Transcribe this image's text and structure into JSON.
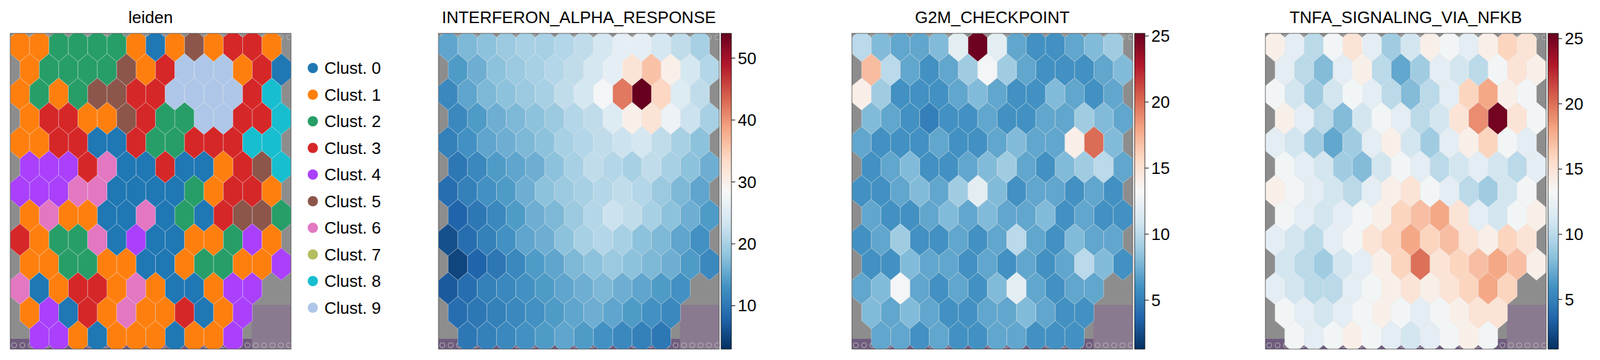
{
  "chart_data": [
    {
      "type": "spatial_categorical",
      "title": "leiden",
      "categories": [
        "Clust. 0",
        "Clust. 1",
        "Clust. 2",
        "Clust. 3",
        "Clust. 4",
        "Clust. 5",
        "Clust. 6",
        "Clust. 7",
        "Clust. 8",
        "Clust. 9"
      ],
      "colors": [
        "#1f77b4",
        "#ff7f0e",
        "#279e68",
        "#d62728",
        "#aa40fc",
        "#8c564b",
        "#e377c2",
        "#b5bd61",
        "#17becf",
        "#aec7e8"
      ],
      "legend": "right",
      "cells": [
        [
          1,
          1,
          2,
          2,
          2,
          2,
          1,
          0,
          1,
          5,
          1,
          3,
          3,
          1
        ],
        [
          1,
          2,
          2,
          2,
          2,
          5,
          1,
          3,
          9,
          9,
          9,
          1,
          3,
          0
        ],
        [
          1,
          2,
          1,
          2,
          5,
          5,
          3,
          3,
          9,
          9,
          9,
          9,
          3,
          8
        ],
        [
          1,
          3,
          3,
          1,
          1,
          5,
          3,
          2,
          2,
          9,
          9,
          3,
          3,
          8
        ],
        [
          1,
          1,
          3,
          3,
          0,
          0,
          3,
          2,
          2,
          3,
          3,
          3,
          8,
          8
        ],
        [
          4,
          4,
          4,
          3,
          6,
          0,
          0,
          3,
          0,
          0,
          1,
          3,
          5,
          8
        ],
        [
          4,
          4,
          4,
          6,
          6,
          0,
          0,
          0,
          0,
          2,
          1,
          3,
          3,
          1
        ],
        [
          1,
          6,
          1,
          1,
          0,
          0,
          6,
          0,
          2,
          0,
          3,
          5,
          5,
          2
        ],
        [
          3,
          1,
          2,
          2,
          6,
          0,
          4,
          0,
          0,
          1,
          1,
          2,
          4,
          1
        ],
        [
          1,
          1,
          2,
          2,
          1,
          1,
          0,
          0,
          1,
          2,
          2,
          1,
          1,
          4
        ],
        [
          6,
          0,
          1,
          3,
          3,
          1,
          6,
          1,
          0,
          0,
          1,
          4,
          4,
          null
        ],
        [
          1,
          4,
          0,
          3,
          1,
          6,
          1,
          1,
          3,
          0,
          1,
          4,
          null,
          null
        ],
        [
          null,
          4,
          4,
          1,
          0,
          1,
          1,
          1,
          0,
          1,
          1,
          4,
          null,
          null
        ]
      ]
    },
    {
      "type": "spatial_heatmap",
      "title": "INTERFERON_ALPHA_RESPONSE",
      "colorbar": {
        "range": [
          3,
          54
        ],
        "ticks": [
          10,
          20,
          30,
          40,
          50
        ]
      },
      "cells": [
        [
          15,
          17,
          18,
          19,
          20,
          20,
          21,
          22,
          24,
          26,
          26,
          24,
          22,
          20
        ],
        [
          14,
          16,
          18,
          19,
          20,
          21,
          22,
          24,
          26,
          32,
          36,
          30,
          24,
          21
        ],
        [
          12,
          15,
          17,
          18,
          19,
          20,
          22,
          24,
          28,
          42,
          54,
          34,
          25,
          22
        ],
        [
          12,
          14,
          16,
          17,
          18,
          19,
          21,
          22,
          25,
          30,
          32,
          27,
          23,
          20
        ],
        [
          11,
          13,
          15,
          16,
          17,
          18,
          20,
          21,
          22,
          23,
          24,
          22,
          20,
          18
        ],
        [
          10,
          12,
          14,
          15,
          16,
          18,
          20,
          22,
          21,
          20,
          22,
          20,
          18,
          16
        ],
        [
          9,
          11,
          13,
          14,
          16,
          18,
          19,
          20,
          21,
          22,
          21,
          19,
          17,
          15
        ],
        [
          8,
          10,
          12,
          14,
          16,
          17,
          19,
          21,
          23,
          22,
          20,
          18,
          16,
          14
        ],
        [
          6,
          9,
          11,
          13,
          15,
          16,
          18,
          20,
          21,
          20,
          18,
          17,
          15,
          13
        ],
        [
          5,
          8,
          10,
          12,
          14,
          15,
          17,
          18,
          19,
          18,
          17,
          16,
          14,
          12
        ],
        [
          7,
          9,
          11,
          12,
          13,
          14,
          15,
          16,
          17,
          16,
          15,
          14,
          13,
          null
        ],
        [
          9,
          10,
          11,
          12,
          13,
          14,
          15,
          16,
          15,
          14,
          13,
          12,
          null,
          null
        ],
        [
          null,
          10,
          11,
          12,
          13,
          14,
          15,
          14,
          13,
          12,
          11,
          10,
          null,
          null
        ]
      ]
    },
    {
      "type": "spatial_heatmap",
      "title": "G2M_CHECKPOINT",
      "colorbar": {
        "range": [
          1.3,
          25.2
        ],
        "ticks": [
          5,
          10,
          15,
          20,
          25
        ]
      },
      "cells": [
        [
          10,
          8,
          7,
          7,
          8,
          12,
          25,
          12,
          7,
          6,
          6,
          7,
          8,
          9
        ],
        [
          17,
          10,
          7,
          6,
          7,
          9,
          13,
          9,
          7,
          6,
          6,
          6,
          7,
          8
        ],
        [
          14,
          9,
          6,
          6,
          6,
          7,
          8,
          7,
          6,
          6,
          8,
          7,
          6,
          7
        ],
        [
          8,
          7,
          6,
          5,
          6,
          6,
          7,
          6,
          6,
          7,
          7,
          9,
          8,
          7
        ],
        [
          7,
          6,
          6,
          6,
          7,
          6,
          6,
          7,
          8,
          7,
          7,
          14,
          20,
          8
        ],
        [
          6,
          7,
          8,
          6,
          6,
          7,
          8,
          9,
          7,
          6,
          8,
          9,
          10,
          7
        ],
        [
          6,
          6,
          7,
          8,
          7,
          9,
          12,
          8,
          6,
          7,
          7,
          6,
          7,
          6
        ],
        [
          7,
          6,
          6,
          7,
          8,
          7,
          8,
          7,
          7,
          8,
          6,
          7,
          6,
          6
        ],
        [
          6,
          7,
          9,
          6,
          6,
          7,
          6,
          7,
          10,
          7,
          6,
          8,
          7,
          7
        ],
        [
          6,
          6,
          8,
          7,
          7,
          6,
          7,
          6,
          7,
          6,
          7,
          10,
          8,
          6
        ],
        [
          7,
          8,
          13,
          7,
          6,
          7,
          6,
          8,
          12,
          7,
          6,
          7,
          7,
          null
        ],
        [
          8,
          7,
          8,
          7,
          6,
          6,
          7,
          7,
          8,
          7,
          6,
          6,
          null,
          null
        ],
        [
          null,
          7,
          7,
          6,
          7,
          6,
          6,
          7,
          7,
          6,
          6,
          6,
          null,
          null
        ]
      ]
    },
    {
      "type": "spatial_heatmap",
      "title": "TNFA_SIGNALING_VIA_NFKB",
      "colorbar": {
        "range": [
          1.2,
          25.4
        ],
        "ticks": [
          5,
          10,
          15,
          20,
          25
        ]
      },
      "cells": [
        [
          14,
          12,
          10,
          13,
          15,
          12,
          9,
          11,
          14,
          13,
          12,
          14,
          16,
          15
        ],
        [
          12,
          10,
          8,
          12,
          14,
          10,
          7,
          9,
          12,
          11,
          10,
          13,
          15,
          14
        ],
        [
          13,
          11,
          9,
          11,
          13,
          12,
          10,
          8,
          10,
          12,
          16,
          18,
          14,
          13
        ],
        [
          14,
          12,
          10,
          8,
          11,
          13,
          12,
          10,
          11,
          15,
          19,
          25,
          15,
          13
        ],
        [
          12,
          11,
          9,
          7,
          9,
          12,
          14,
          11,
          9,
          12,
          14,
          16,
          13,
          12
        ],
        [
          13,
          12,
          11,
          9,
          8,
          11,
          13,
          12,
          10,
          11,
          12,
          11,
          10,
          12
        ],
        [
          14,
          13,
          12,
          11,
          10,
          12,
          14,
          15,
          13,
          12,
          10,
          9,
          11,
          13
        ],
        [
          13,
          12,
          11,
          12,
          13,
          14,
          16,
          17,
          18,
          15,
          12,
          11,
          13,
          14
        ],
        [
          12,
          11,
          10,
          12,
          13,
          15,
          16,
          18,
          16,
          17,
          15,
          14,
          16,
          15
        ],
        [
          11,
          10,
          9,
          11,
          12,
          14,
          16,
          20,
          15,
          16,
          17,
          18,
          17,
          14
        ],
        [
          12,
          11,
          10,
          10,
          12,
          13,
          14,
          15,
          14,
          15,
          16,
          18,
          16,
          null
        ],
        [
          13,
          12,
          11,
          12,
          13,
          14,
          13,
          12,
          13,
          14,
          15,
          15,
          null,
          null
        ],
        [
          null,
          13,
          12,
          13,
          14,
          13,
          12,
          11,
          12,
          13,
          14,
          13,
          null,
          null
        ]
      ]
    }
  ]
}
